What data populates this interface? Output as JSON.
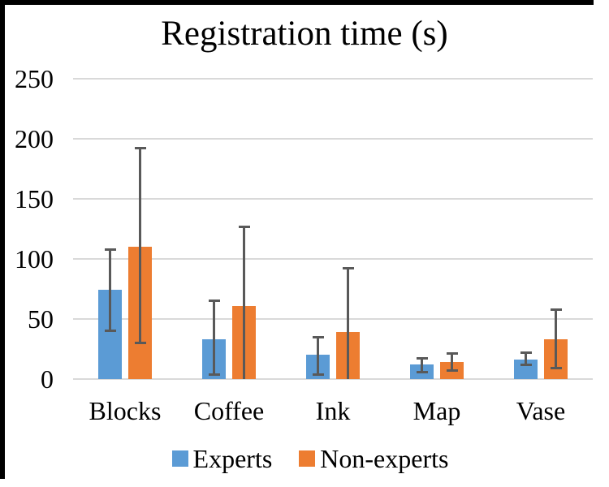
{
  "chart_data": {
    "type": "bar",
    "title": "Registration time (s)",
    "categories": [
      "Blocks",
      "Coffee",
      "Ink",
      "Map",
      "Vase"
    ],
    "series": [
      {
        "name": "Experts",
        "color": "#5B9BD5",
        "values": [
          74,
          33,
          20,
          12,
          16
        ],
        "error_low": [
          40,
          4,
          4,
          6,
          12
        ],
        "error_high": [
          108,
          65,
          35,
          17,
          22
        ]
      },
      {
        "name": "Non-experts",
        "color": "#ED7D31",
        "values": [
          110,
          61,
          39,
          14,
          33
        ],
        "error_low": [
          30,
          0,
          0,
          7,
          9
        ],
        "error_high": [
          192,
          127,
          92,
          21,
          58
        ]
      }
    ],
    "ylim": [
      0,
      250
    ],
    "yticks": [
      0,
      50,
      100,
      150,
      200,
      250
    ],
    "xlabel": "",
    "ylabel": "",
    "grid": "horizontal",
    "legend_position": "bottom",
    "gridline_color": "#D9D9D9",
    "error_bar_color": "#595959",
    "background_color": "#FFFFFF",
    "frame_color": "#000000"
  }
}
